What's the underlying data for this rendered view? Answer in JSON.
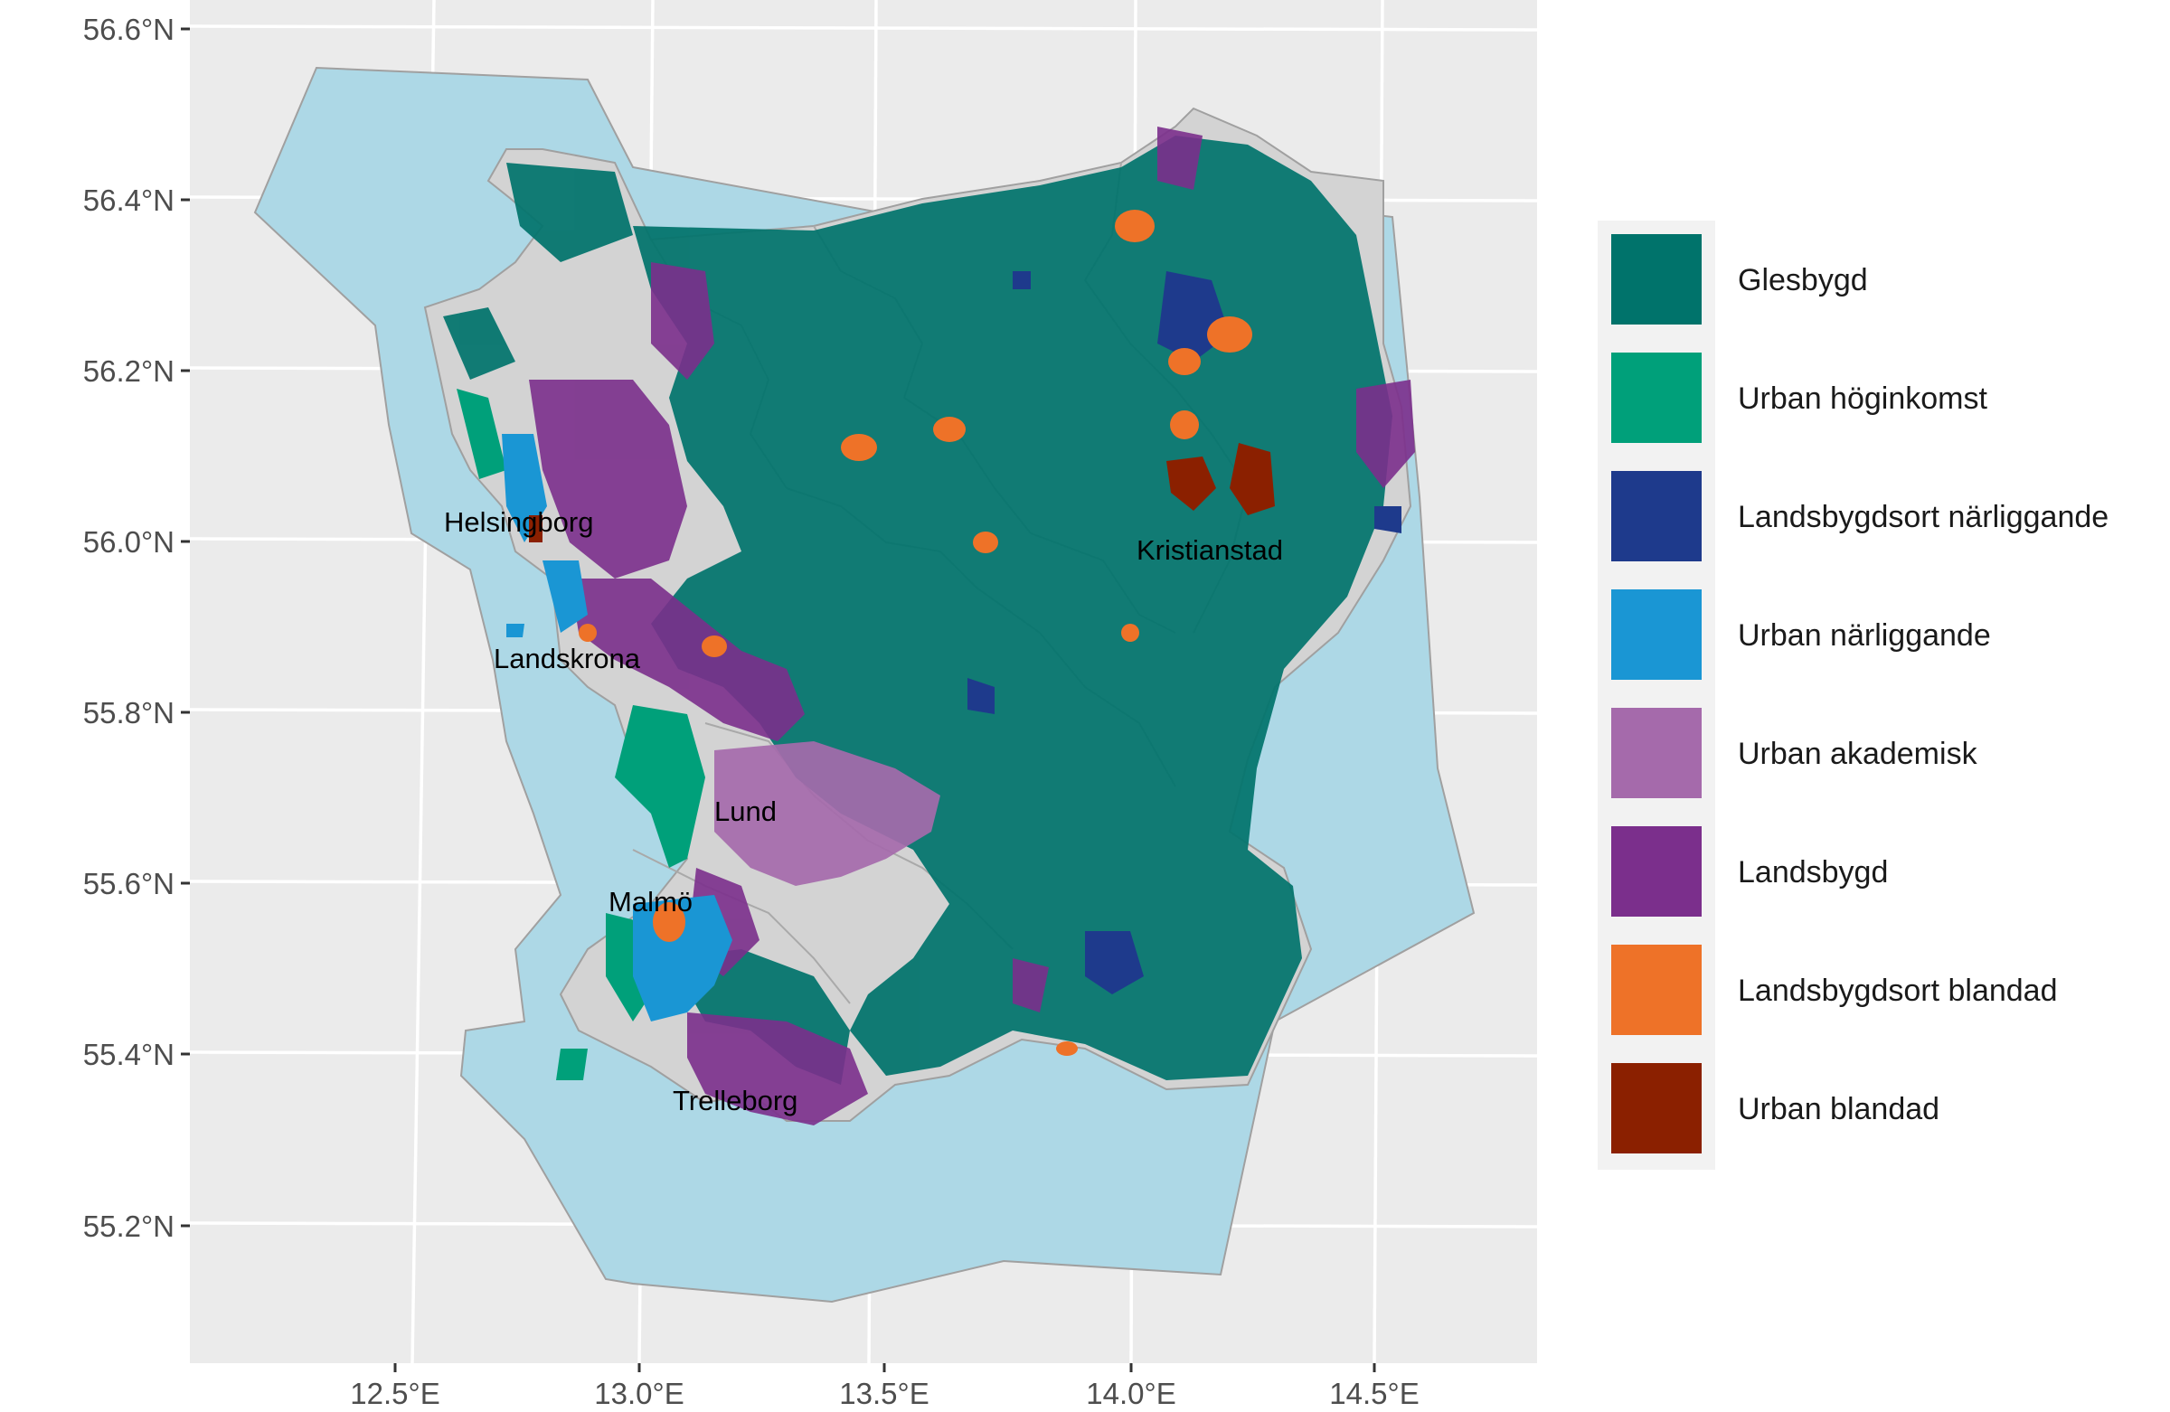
{
  "map": {
    "y_ticks": [
      "56.6°N",
      "56.4°N",
      "56.2°N",
      "56.0°N",
      "55.8°N",
      "55.6°N",
      "55.4°N",
      "55.2°N"
    ],
    "x_ticks": [
      "12.5°E",
      "13.0°E",
      "13.5°E",
      "14.0°E",
      "14.5°E"
    ],
    "cities": [
      {
        "name": "Helsingborg"
      },
      {
        "name": "Landskrona"
      },
      {
        "name": "Lund"
      },
      {
        "name": "Malmö"
      },
      {
        "name": "Trelleborg"
      },
      {
        "name": "Kristianstad"
      }
    ],
    "colors": {
      "panel": "#ebebeb",
      "grid": "#ffffff",
      "sea": "#add8e6",
      "land": "#d3d3d3",
      "border": "#a0a0a0"
    }
  },
  "legend": {
    "items": [
      {
        "label": "Glesbygd",
        "color": "#00736b"
      },
      {
        "label": "Urban höginkomst",
        "color": "#00a07a"
      },
      {
        "label": "Landsbygdsort närliggande",
        "color": "#1e3a8c"
      },
      {
        "label": "Urban närliggande",
        "color": "#1a96d4"
      },
      {
        "label": "Urban akademisk",
        "color": "#a56aab"
      },
      {
        "label": "Landsbygd",
        "color": "#7b2f8c"
      },
      {
        "label": "Landsbygdsort blandad",
        "color": "#ee7228"
      },
      {
        "label": "Urban blandad",
        "color": "#8b2000"
      }
    ]
  }
}
